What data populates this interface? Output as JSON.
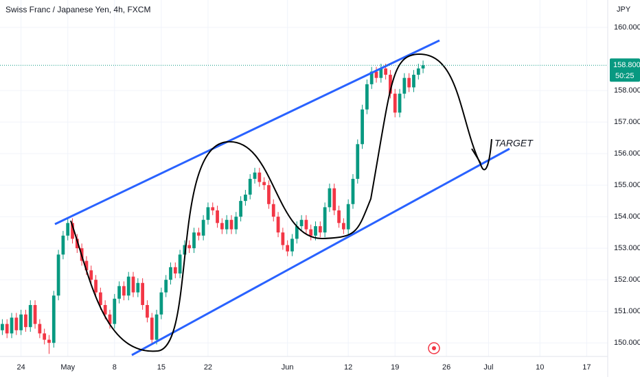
{
  "chart_data": {
    "type": "candlestick",
    "title": "Swiss Franc / Japanese Yen, 4h, FXCM",
    "currency": "JPY",
    "annotation": "TARGET",
    "countdown": "50:25",
    "last_price": {
      "value": 158.8,
      "label": "158.800"
    },
    "up_color": "#089981",
    "down_color": "#f23645",
    "grid": true,
    "ylim": [
      149.57,
      160.87
    ],
    "yticks": [
      {
        "value": 150,
        "label": "150.000"
      },
      {
        "value": 151,
        "label": "151.000"
      },
      {
        "value": 152,
        "label": "152.000"
      },
      {
        "value": 153,
        "label": "153.000"
      },
      {
        "value": 154,
        "label": "154.000"
      },
      {
        "value": 155,
        "label": "155.000"
      },
      {
        "value": 156,
        "label": "156.000"
      },
      {
        "value": 157,
        "label": "157.000"
      },
      {
        "value": 158,
        "label": "158.000"
      },
      {
        "value": 160,
        "label": "160.000"
      }
    ],
    "categories": [
      null,
      null,
      null,
      null,
      "24",
      null,
      null,
      null,
      null,
      null,
      null,
      null,
      null,
      null,
      "May",
      null,
      null,
      null,
      null,
      null,
      null,
      null,
      null,
      null,
      "8",
      null,
      null,
      null,
      null,
      null,
      null,
      null,
      null,
      null,
      "15",
      null,
      null,
      null,
      null,
      null,
      null,
      null,
      null,
      null,
      "22",
      null,
      null,
      null,
      null,
      null,
      null,
      null,
      null,
      null,
      null,
      null,
      null,
      null,
      null,
      null,
      null,
      "Jun",
      null,
      null,
      null,
      null,
      null,
      null,
      null,
      null,
      null,
      null,
      null,
      null,
      "12",
      null,
      null,
      null,
      null,
      null,
      null,
      null,
      null,
      null,
      "19",
      null,
      null,
      null,
      null,
      null,
      null,
      null,
      null,
      null,
      null,
      "26",
      null,
      null,
      null,
      null,
      null,
      null,
      null,
      null,
      "Jul",
      null,
      null,
      null,
      null,
      null,
      null,
      null,
      null,
      null,
      null,
      "10",
      null,
      null,
      null,
      null,
      null,
      null,
      null,
      null,
      null,
      "17",
      null,
      null,
      null,
      null
    ],
    "values": [
      [
        150.4,
        150.75,
        150.25,
        150.6
      ],
      [
        150.6,
        150.75,
        150.15,
        150.3
      ],
      [
        150.3,
        150.95,
        150.15,
        150.8
      ],
      [
        150.8,
        150.95,
        150.25,
        150.4
      ],
      [
        150.4,
        151.05,
        150.25,
        150.9
      ],
      [
        150.9,
        151.05,
        150.35,
        150.5
      ],
      [
        150.5,
        151.35,
        150.35,
        151.2
      ],
      [
        151.2,
        151.35,
        150.45,
        150.6
      ],
      [
        150.6,
        150.75,
        150.15,
        150.3
      ],
      [
        150.3,
        150.45,
        149.95,
        150.1
      ],
      [
        150.1,
        150.25,
        149.65,
        150.0
      ],
      [
        150.0,
        151.65,
        149.85,
        151.5
      ],
      [
        151.5,
        152.95,
        151.35,
        152.8
      ],
      [
        152.8,
        153.55,
        152.65,
        153.4
      ],
      [
        153.4,
        153.95,
        153.25,
        153.8
      ],
      [
        153.8,
        153.95,
        153.15,
        153.3
      ],
      [
        153.3,
        153.45,
        152.85,
        153.0
      ],
      [
        153.0,
        153.15,
        152.45,
        152.6
      ],
      [
        152.6,
        152.75,
        152.15,
        152.3
      ],
      [
        152.3,
        152.45,
        151.85,
        152.0
      ],
      [
        152.0,
        152.15,
        151.45,
        151.6
      ],
      [
        151.6,
        151.75,
        151.05,
        151.2
      ],
      [
        151.2,
        151.35,
        150.75,
        150.9
      ],
      [
        150.9,
        151.05,
        150.45,
        150.6
      ],
      [
        150.6,
        151.55,
        150.45,
        151.4
      ],
      [
        151.4,
        151.95,
        151.25,
        151.8
      ],
      [
        151.8,
        151.95,
        151.35,
        151.5
      ],
      [
        151.5,
        152.25,
        151.35,
        152.1
      ],
      [
        152.1,
        152.25,
        151.45,
        151.6
      ],
      [
        151.6,
        152.05,
        151.45,
        151.9
      ],
      [
        151.9,
        152.05,
        151.05,
        151.2
      ],
      [
        151.2,
        151.35,
        150.65,
        150.8
      ],
      [
        150.8,
        150.95,
        149.95,
        150.1
      ],
      [
        150.1,
        151.05,
        149.95,
        150.9
      ],
      [
        150.9,
        151.75,
        150.75,
        151.6
      ],
      [
        151.6,
        152.15,
        151.45,
        152.0
      ],
      [
        152.0,
        152.55,
        151.85,
        152.4
      ],
      [
        152.4,
        152.55,
        152.05,
        152.2
      ],
      [
        152.2,
        152.95,
        152.05,
        152.8
      ],
      [
        152.8,
        153.25,
        152.65,
        153.1
      ],
      [
        153.1,
        153.25,
        152.85,
        153.0
      ],
      [
        153.0,
        153.65,
        152.85,
        153.5
      ],
      [
        153.5,
        153.65,
        153.25,
        153.4
      ],
      [
        153.4,
        154.05,
        153.25,
        153.9
      ],
      [
        153.9,
        154.45,
        153.75,
        154.3
      ],
      [
        154.3,
        154.45,
        154.05,
        154.2
      ],
      [
        154.2,
        154.35,
        153.65,
        153.8
      ],
      [
        153.8,
        153.95,
        153.45,
        153.6
      ],
      [
        153.6,
        154.05,
        153.45,
        153.9
      ],
      [
        153.9,
        154.05,
        153.45,
        153.6
      ],
      [
        153.6,
        154.15,
        153.45,
        154.0
      ],
      [
        154.0,
        154.65,
        153.85,
        154.5
      ],
      [
        154.5,
        154.85,
        154.35,
        154.7
      ],
      [
        154.7,
        155.35,
        154.55,
        155.2
      ],
      [
        155.2,
        155.55,
        155.05,
        155.4
      ],
      [
        155.4,
        155.55,
        154.95,
        155.1
      ],
      [
        155.1,
        155.25,
        154.85,
        155.0
      ],
      [
        155.0,
        155.15,
        154.25,
        154.4
      ],
      [
        154.4,
        154.55,
        153.85,
        154.0
      ],
      [
        154.0,
        154.15,
        153.35,
        153.5
      ],
      [
        153.5,
        153.65,
        152.95,
        153.1
      ],
      [
        153.1,
        153.25,
        152.75,
        152.9
      ],
      [
        152.9,
        153.45,
        152.75,
        153.3
      ],
      [
        153.3,
        153.85,
        153.15,
        153.7
      ],
      [
        153.7,
        154.05,
        153.55,
        153.9
      ],
      [
        153.9,
        154.05,
        153.45,
        153.6
      ],
      [
        153.6,
        153.75,
        153.25,
        153.4
      ],
      [
        153.4,
        153.85,
        153.25,
        153.7
      ],
      [
        153.7,
        153.85,
        153.35,
        153.5
      ],
      [
        153.5,
        154.45,
        153.35,
        154.3
      ],
      [
        154.3,
        155.05,
        154.15,
        154.9
      ],
      [
        154.9,
        155.05,
        154.05,
        154.2
      ],
      [
        154.2,
        154.35,
        153.65,
        153.8
      ],
      [
        153.8,
        153.95,
        153.45,
        153.6
      ],
      [
        153.6,
        154.55,
        153.45,
        154.4
      ],
      [
        154.4,
        155.35,
        154.25,
        155.2
      ],
      [
        155.2,
        156.45,
        155.05,
        156.3
      ],
      [
        156.3,
        157.55,
        156.15,
        157.4
      ],
      [
        157.4,
        158.35,
        157.25,
        158.2
      ],
      [
        158.2,
        158.75,
        158.05,
        158.6
      ],
      [
        158.6,
        158.75,
        158.25,
        158.4
      ],
      [
        158.4,
        158.85,
        158.25,
        158.7
      ],
      [
        158.7,
        158.85,
        158.35,
        158.5
      ],
      [
        158.5,
        158.65,
        157.75,
        157.9
      ],
      [
        157.9,
        158.05,
        157.15,
        157.3
      ],
      [
        157.3,
        158.05,
        157.15,
        157.9
      ],
      [
        157.9,
        158.55,
        157.75,
        158.4
      ],
      [
        158.4,
        158.55,
        157.95,
        158.1
      ],
      [
        158.1,
        158.65,
        157.95,
        158.5
      ],
      [
        158.5,
        158.85,
        158.35,
        158.7
      ],
      [
        158.7,
        158.95,
        158.55,
        158.8
      ],
      null,
      null,
      null,
      null,
      null,
      null,
      null,
      null,
      null,
      null,
      null,
      null,
      null,
      null,
      null,
      null,
      null,
      null,
      null,
      null,
      null,
      null,
      null,
      null,
      null,
      null,
      null,
      null,
      null,
      null,
      null,
      null,
      null,
      null,
      null,
      null,
      null,
      null,
      null
    ]
  }
}
